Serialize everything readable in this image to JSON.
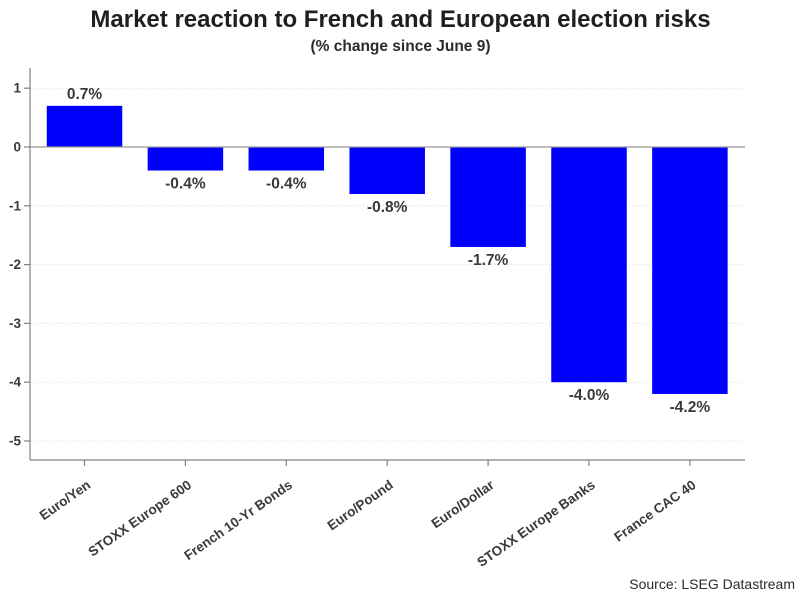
{
  "header": {
    "title": "Market reaction to French and European election risks",
    "subtitle": "(% change since June 9)"
  },
  "footer": {
    "source": "Source: LSEG Datastream"
  },
  "chart_data": {
    "type": "bar",
    "title": "Market reaction to French and European election risks",
    "subtitle": "(% change since June 9)",
    "categories": [
      "Euro/Yen",
      "STOXX Europe 600",
      "French 10-Yr Bonds",
      "Euro/Pound",
      "Euro/Dollar",
      "STOXX Europe Banks",
      "France CAC 40"
    ],
    "values": [
      0.7,
      -0.4,
      -0.4,
      -0.8,
      -1.7,
      -4.0,
      -4.2
    ],
    "value_labels": [
      "0.7%",
      "-0.4%",
      "-0.4%",
      "-0.8%",
      "-1.7%",
      "-4.0%",
      "-4.2%"
    ],
    "xlabel": "",
    "ylabel": "",
    "yticks": [
      1,
      0,
      -1,
      -2,
      -3,
      -4,
      -5
    ],
    "ytick_labels": [
      "1",
      "0",
      "-1",
      "-2",
      "-3",
      "-4",
      "-5"
    ],
    "ylim": [
      -5.35,
      1.35
    ],
    "grid": "horizontal-dotted",
    "legend": "none",
    "bar_color": "#0000ff",
    "grid_color": "#d9d9d9",
    "axis_color": "#808080",
    "zero_line_color": "#999999",
    "label_color": "#3a3a3a",
    "source": "Source: LSEG Datastream"
  }
}
